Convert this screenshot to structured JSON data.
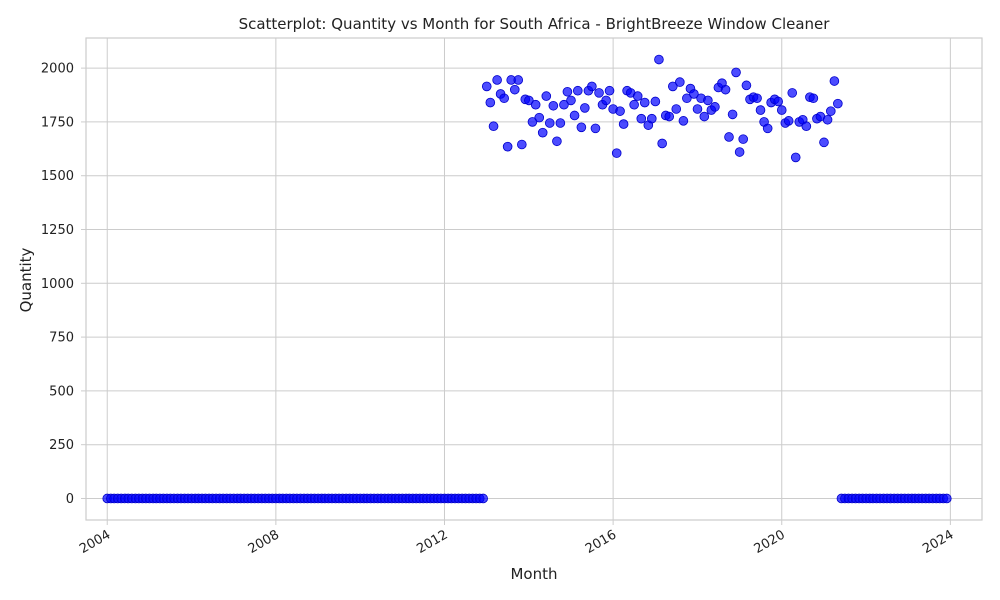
{
  "chart_data": {
    "type": "scatter",
    "title": "Scatterplot: Quantity vs Month for South Africa - BrightBreeze Window Cleaner",
    "xlabel": "Month",
    "ylabel": "Quantity",
    "x_range": [
      "2003-07-01",
      "2024-10-01"
    ],
    "ylim": [
      -100,
      2140
    ],
    "x_ticks": [
      {
        "date": "2004-01-01",
        "label": "2004"
      },
      {
        "date": "2008-01-01",
        "label": "2008"
      },
      {
        "date": "2012-01-01",
        "label": "2012"
      },
      {
        "date": "2016-01-01",
        "label": "2016"
      },
      {
        "date": "2020-01-01",
        "label": "2020"
      },
      {
        "date": "2024-01-01",
        "label": "2024"
      }
    ],
    "y_ticks": [
      0,
      250,
      500,
      750,
      1000,
      1250,
      1500,
      1750,
      2000
    ],
    "grid": true,
    "marker_color": "#0000ff",
    "marker_opacity": 0.7,
    "series": [
      {
        "segments": [
          {
            "start": "2004-01",
            "end": "2012-12",
            "value": 0
          },
          {
            "start": "2013-01",
            "values": [
              1915,
              1840,
              1730,
              1945,
              1880,
              1860,
              1635,
              1945,
              1900,
              1945,
              1645,
              1855,
              1850,
              1750,
              1830,
              1770,
              1700,
              1870,
              1745,
              1825,
              1660,
              1745,
              1830,
              1890,
              1850,
              1780,
              1895,
              1725,
              1815,
              1895,
              1915,
              1720,
              1885,
              1830,
              1850,
              1895,
              1810,
              1605,
              1800,
              1740,
              1895,
              1885,
              1830,
              1870,
              1765,
              1840,
              1735,
              1765,
              1845,
              2040,
              1650,
              1780,
              1775,
              1915,
              1810,
              1935,
              1755,
              1860,
              1905,
              1880,
              1810,
              1860,
              1775,
              1850,
              1805,
              1820,
              1910,
              1930,
              1900,
              1680,
              1785,
              1980,
              1610,
              1670,
              1920,
              1855,
              1865,
              1860,
              1805,
              1750,
              1720,
              1840,
              1855,
              1845,
              1805,
              1745,
              1755,
              1885,
              1585,
              1750,
              1760,
              1730,
              1865,
              1860,
              1765,
              1775,
              1655,
              1760,
              1800,
              1940,
              1835
            ]
          },
          {
            "start": "2021-06",
            "end": "2023-12",
            "value": 0
          }
        ]
      }
    ]
  }
}
